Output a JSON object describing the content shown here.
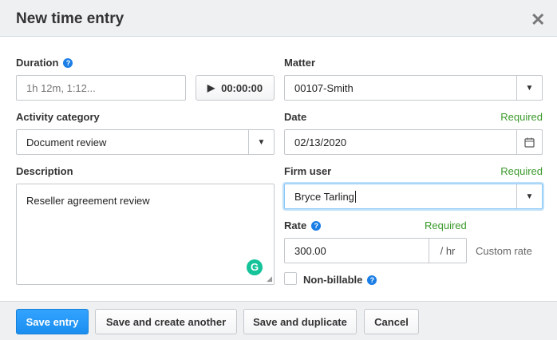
{
  "dialog": {
    "title": "New time entry",
    "close_icon": "close-icon"
  },
  "duration": {
    "label": "Duration",
    "placeholder": "1h 12m, 1:12...",
    "timer": "00:00:00"
  },
  "activity": {
    "label": "Activity category",
    "value": "Document review"
  },
  "description": {
    "label": "Description",
    "value": "Reseller agreement review"
  },
  "matter": {
    "label": "Matter",
    "value": "00107-Smith"
  },
  "date": {
    "label": "Date",
    "required": "Required",
    "value": "02/13/2020"
  },
  "firm_user": {
    "label": "Firm user",
    "required": "Required",
    "value": "Bryce Tarling"
  },
  "rate": {
    "label": "Rate",
    "required": "Required",
    "value": "300.00",
    "unit": "/ hr",
    "note": "Custom rate"
  },
  "non_billable": {
    "label": "Non-billable",
    "checked": false
  },
  "footer": {
    "save": "Save entry",
    "save_another": "Save and create another",
    "save_duplicate": "Save and duplicate",
    "cancel": "Cancel"
  },
  "colors": {
    "primary": "#1a8ef0",
    "required": "#3a9a2a",
    "focus": "#8cc8f5"
  }
}
